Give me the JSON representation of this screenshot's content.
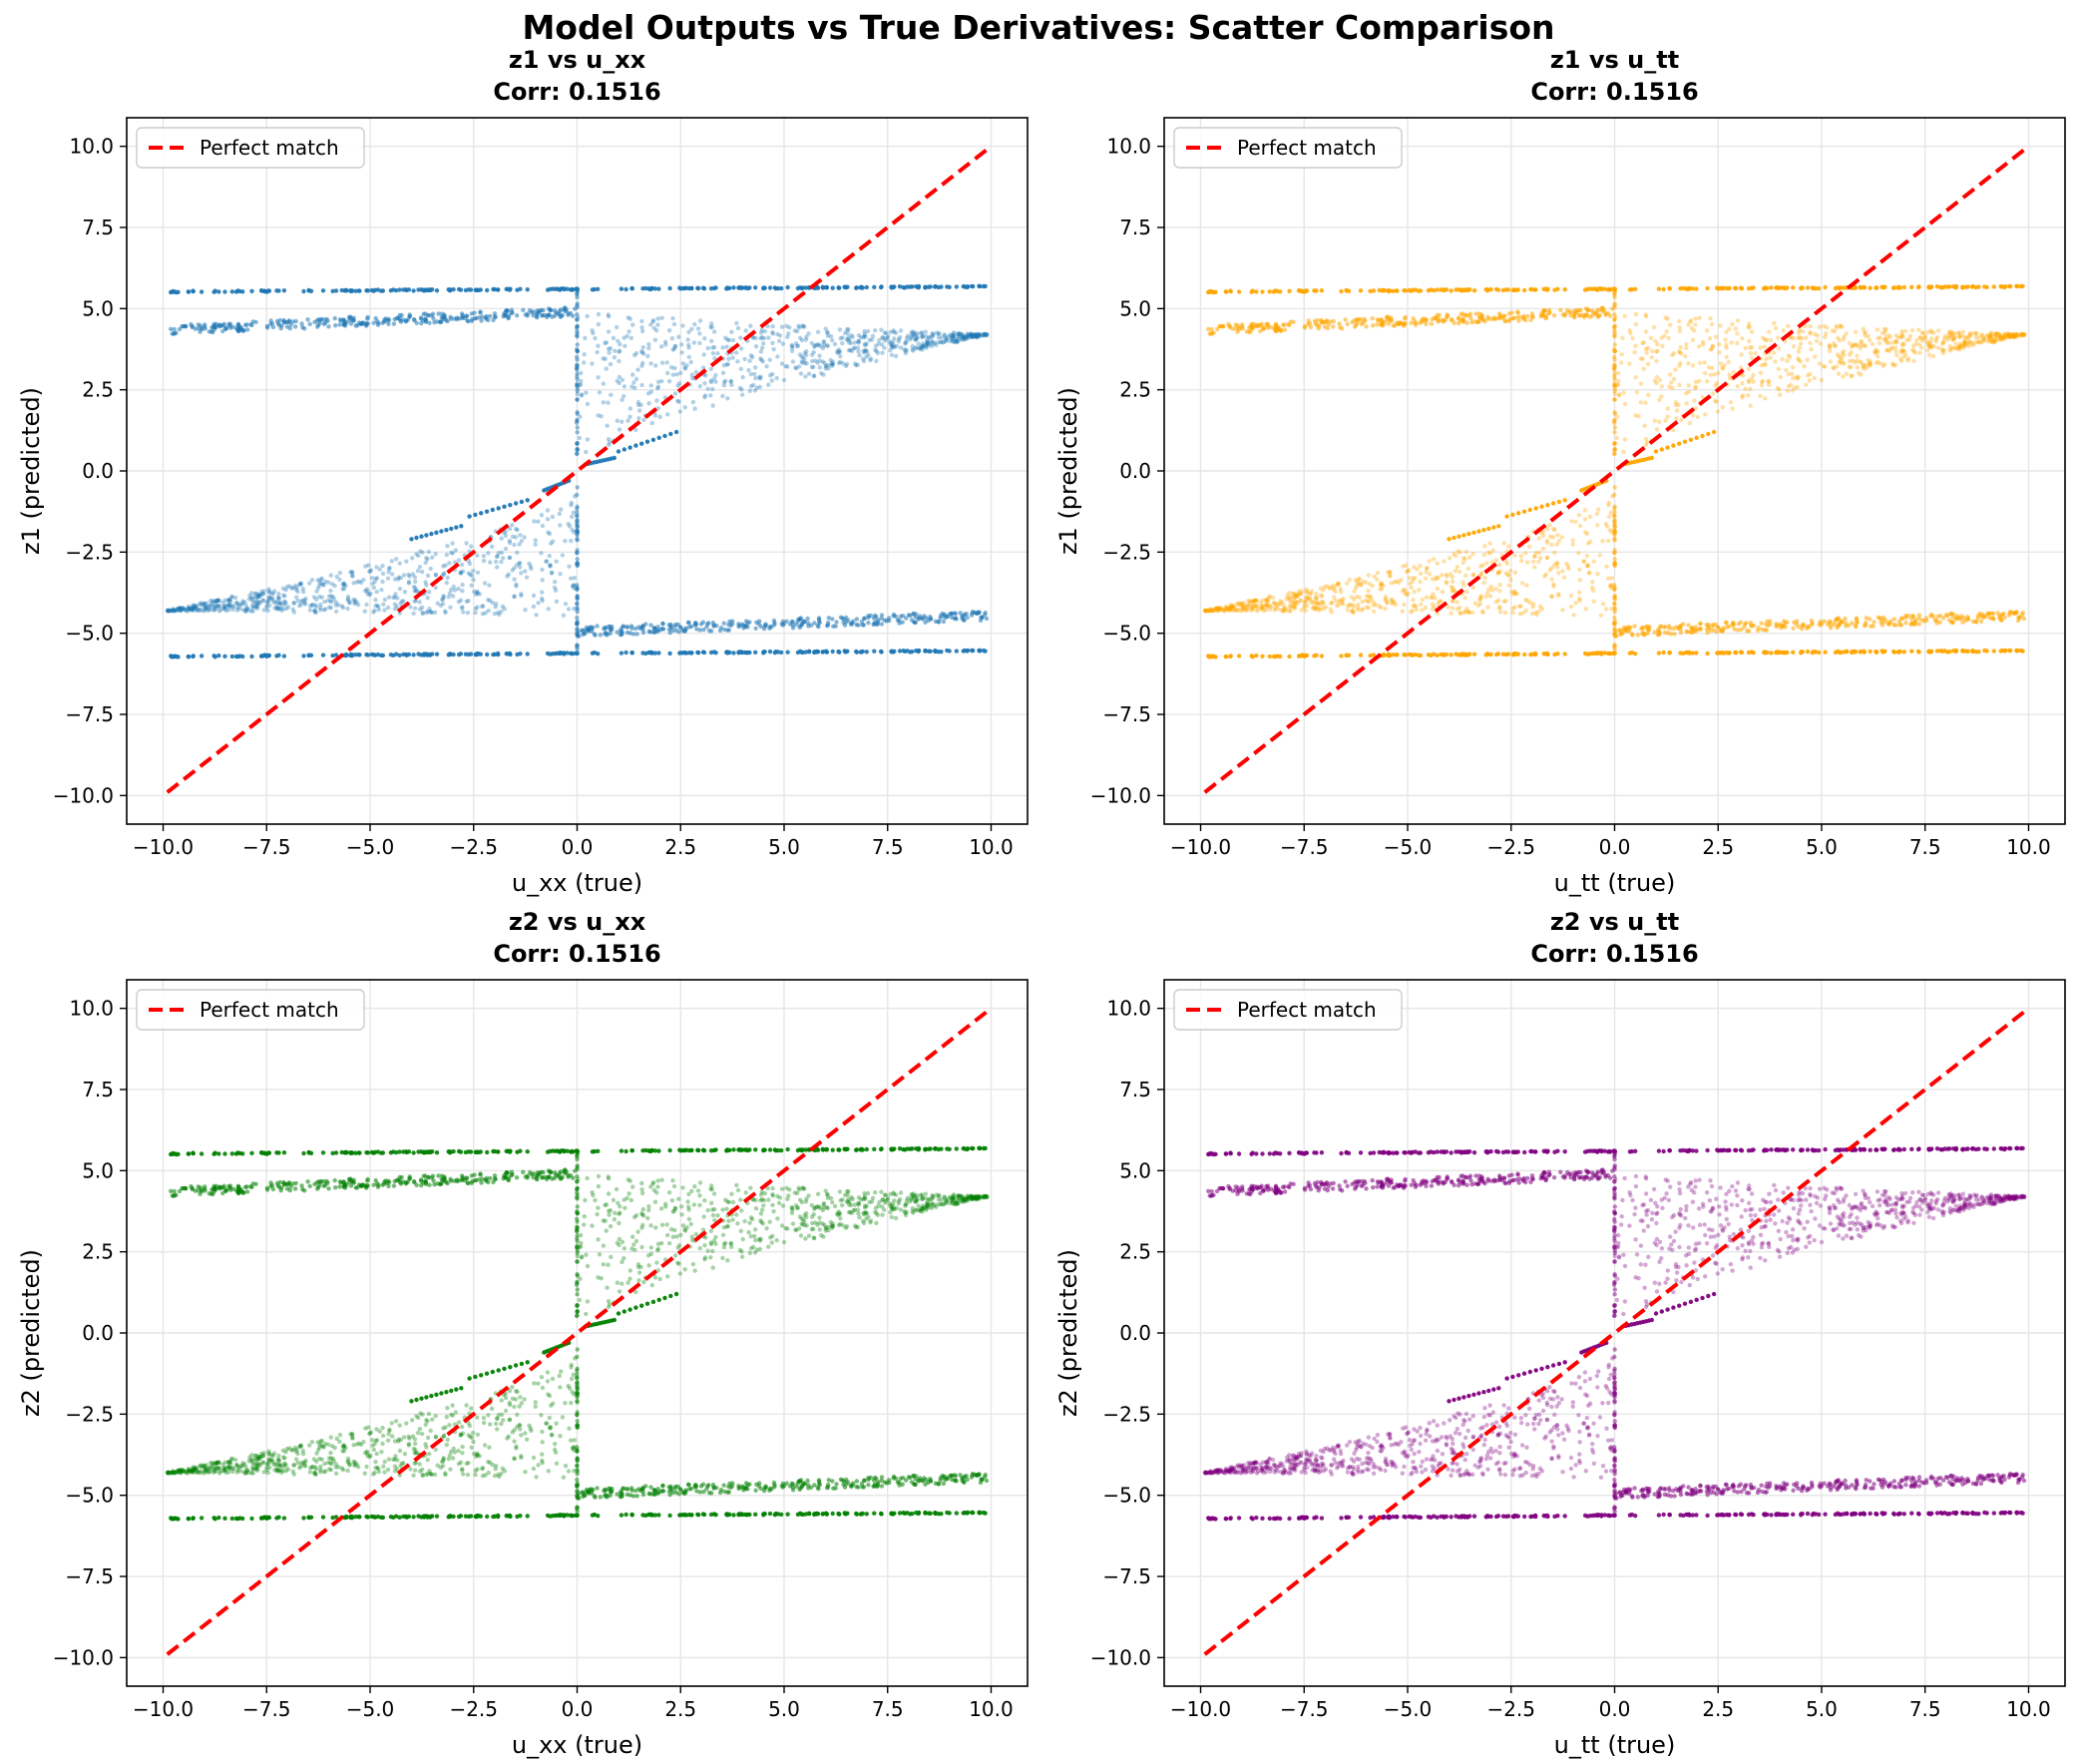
{
  "suptitle": "Model Outputs vs True Derivatives: Scatter Comparison",
  "chart_data": [
    {
      "type": "scatter",
      "title_line1": "z1 vs u_xx",
      "title_line2": "Corr: 0.1516",
      "xlabel": "u_xx (true)",
      "ylabel": "z1 (predicted)",
      "xlim": [
        -10.88,
        10.88
      ],
      "ylim": [
        -10.88,
        10.88
      ],
      "xticks": [
        -10.0,
        -7.5,
        -5.0,
        -2.5,
        0.0,
        2.5,
        5.0,
        7.5,
        10.0
      ],
      "yticks": [
        -10.0,
        -7.5,
        -5.0,
        -2.5,
        0.0,
        2.5,
        5.0,
        7.5,
        10.0
      ],
      "xtick_labels": [
        "−10.0",
        "−7.5",
        "−5.0",
        "−2.5",
        "0.0",
        "2.5",
        "5.0",
        "7.5",
        "10.0"
      ],
      "ytick_labels": [
        "−10.0",
        "−7.5",
        "−5.0",
        "−2.5",
        "0.0",
        "2.5",
        "5.0",
        "7.5",
        "10.0"
      ],
      "grid": true,
      "legend_position": "top-left",
      "color": "#1f77b4",
      "reference_line": {
        "name": "Perfect match",
        "x": [
          -9.9,
          9.9
        ],
        "y": [
          -9.9,
          9.9
        ],
        "color": "#ff0000",
        "style": "dashed"
      },
      "scatter_structure": {
        "note_bands": "points form horizontal bands and a fan between x=0 and x=10",
        "upper_band_y": [
          5.5,
          5.7
        ],
        "upper_mid_band": {
          "x": [
            -9.9,
            0
          ],
          "y": [
            4.3,
            5.1
          ]
        },
        "right_fan": {
          "x": [
            0,
            9.9
          ],
          "y_low_at_0": 0.1,
          "y_high_at_0": 5.0,
          "y_at_10": 4.2
        },
        "left_fan": {
          "x": [
            -9.9,
            0
          ],
          "y_low_at_0": -4.5,
          "y_high_at_0": -0.6,
          "y_at_minus10": -4.3
        },
        "lower_mid_band": {
          "x": [
            0,
            9.9
          ],
          "y": [
            -5.1,
            -4.4
          ]
        },
        "lower_band_y": [
          -5.75,
          -5.5
        ]
      }
    },
    {
      "type": "scatter",
      "title_line1": "z1 vs u_tt",
      "title_line2": "Corr: 0.1516",
      "xlabel": "u_tt (true)",
      "ylabel": "z1 (predicted)",
      "xlim": [
        -10.88,
        10.88
      ],
      "ylim": [
        -10.88,
        10.88
      ],
      "xticks": [
        -10.0,
        -7.5,
        -5.0,
        -2.5,
        0.0,
        2.5,
        5.0,
        7.5,
        10.0
      ],
      "yticks": [
        -10.0,
        -7.5,
        -5.0,
        -2.5,
        0.0,
        2.5,
        5.0,
        7.5,
        10.0
      ],
      "xtick_labels": [
        "−10.0",
        "−7.5",
        "−5.0",
        "−2.5",
        "0.0",
        "2.5",
        "5.0",
        "7.5",
        "10.0"
      ],
      "ytick_labels": [
        "−10.0",
        "−7.5",
        "−5.0",
        "−2.5",
        "0.0",
        "2.5",
        "5.0",
        "7.5",
        "10.0"
      ],
      "grid": true,
      "legend_position": "top-left",
      "color": "#ffa500",
      "reference_line": {
        "name": "Perfect match",
        "x": [
          -9.9,
          9.9
        ],
        "y": [
          -9.9,
          9.9
        ],
        "color": "#ff0000",
        "style": "dashed"
      }
    },
    {
      "type": "scatter",
      "title_line1": "z2 vs u_xx",
      "title_line2": "Corr: 0.1516",
      "xlabel": "u_xx (true)",
      "ylabel": "z2 (predicted)",
      "xlim": [
        -10.88,
        10.88
      ],
      "ylim": [
        -10.88,
        10.88
      ],
      "xticks": [
        -10.0,
        -7.5,
        -5.0,
        -2.5,
        0.0,
        2.5,
        5.0,
        7.5,
        10.0
      ],
      "yticks": [
        -10.0,
        -7.5,
        -5.0,
        -2.5,
        0.0,
        2.5,
        5.0,
        7.5,
        10.0
      ],
      "xtick_labels": [
        "−10.0",
        "−7.5",
        "−5.0",
        "−2.5",
        "0.0",
        "2.5",
        "5.0",
        "7.5",
        "10.0"
      ],
      "ytick_labels": [
        "−10.0",
        "−7.5",
        "−5.0",
        "−2.5",
        "0.0",
        "2.5",
        "5.0",
        "7.5",
        "10.0"
      ],
      "grid": true,
      "legend_position": "top-left",
      "color": "#008000",
      "reference_line": {
        "name": "Perfect match",
        "x": [
          -9.9,
          9.9
        ],
        "y": [
          -9.9,
          9.9
        ],
        "color": "#ff0000",
        "style": "dashed"
      }
    },
    {
      "type": "scatter",
      "title_line1": "z2 vs u_tt",
      "title_line2": "Corr: 0.1516",
      "xlabel": "u_tt (true)",
      "ylabel": "z2 (predicted)",
      "xlim": [
        -10.88,
        10.88
      ],
      "ylim": [
        -10.88,
        10.88
      ],
      "xticks": [
        -10.0,
        -7.5,
        -5.0,
        -2.5,
        0.0,
        2.5,
        5.0,
        7.5,
        10.0
      ],
      "yticks": [
        -10.0,
        -7.5,
        -5.0,
        -2.5,
        0.0,
        2.5,
        5.0,
        7.5,
        10.0
      ],
      "xtick_labels": [
        "−10.0",
        "−7.5",
        "−5.0",
        "−2.5",
        "0.0",
        "2.5",
        "5.0",
        "7.5",
        "10.0"
      ],
      "ytick_labels": [
        "−10.0",
        "−7.5",
        "−5.0",
        "−2.5",
        "0.0",
        "2.5",
        "5.0",
        "7.5",
        "10.0"
      ],
      "grid": true,
      "legend_position": "top-left",
      "color": "#800080",
      "reference_line": {
        "name": "Perfect match",
        "x": [
          -9.9,
          9.9
        ],
        "y": [
          -9.9,
          9.9
        ],
        "color": "#ff0000",
        "style": "dashed"
      }
    }
  ]
}
